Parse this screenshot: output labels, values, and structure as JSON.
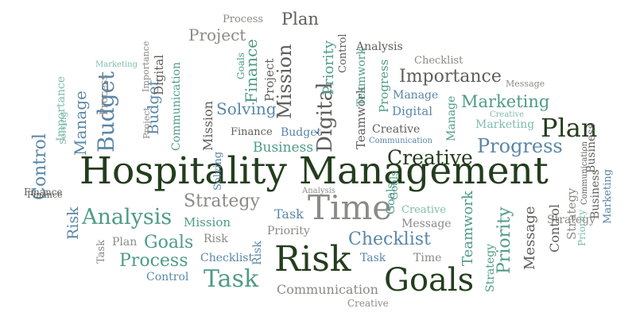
{
  "colors": {
    "dark_green": "#233d1d",
    "teal": "#4f9b88",
    "light_teal": "#7fbcaf",
    "blue": "#5a86a8",
    "gray": "#8a8a88",
    "dark_gray": "#5e5e5c"
  },
  "words": [
    "Hospitality Management",
    "Risk",
    "Goals",
    "Time",
    "Plan",
    "Creative",
    "Progress",
    "Analysis",
    "Task",
    "Importance",
    "Marketing",
    "Checklist",
    "Strategy",
    "Process",
    "Project",
    "Budget",
    "Digital",
    "Mission",
    "Control",
    "Finance",
    "Solving",
    "Business",
    "Manage",
    "Teamwork",
    "Priority",
    "Message",
    "Communication",
    "Plan",
    "Process",
    "Analysis",
    "Checklist",
    "Message",
    "Marketing",
    "Manage",
    "Digital",
    "Creative",
    "Business",
    "Budget",
    "Finance",
    "Solving",
    "Project",
    "Mission",
    "Goals",
    "Priority",
    "Control",
    "Progress",
    "Communication",
    "Importance",
    "Teamwork",
    "Strategy",
    "Task",
    "Time",
    "Risk",
    "Checklist",
    "Process",
    "Control",
    "Creative",
    "Communication",
    "Priority",
    "Message",
    "Goals",
    "Creative",
    "Task",
    "Plan",
    "Risk",
    "Strategy",
    "Analysis",
    "Mission",
    "Teamwork",
    "Finance",
    "Digital",
    "Project",
    "Budget",
    "Business",
    "Marketing",
    "Strategy",
    "Control",
    "Priority",
    "Communication",
    "Importance",
    "Manage",
    "Goals",
    "Task",
    "Risk",
    "Finance",
    "Marketing",
    "Goals",
    "Solving",
    "Creative"
  ]
}
